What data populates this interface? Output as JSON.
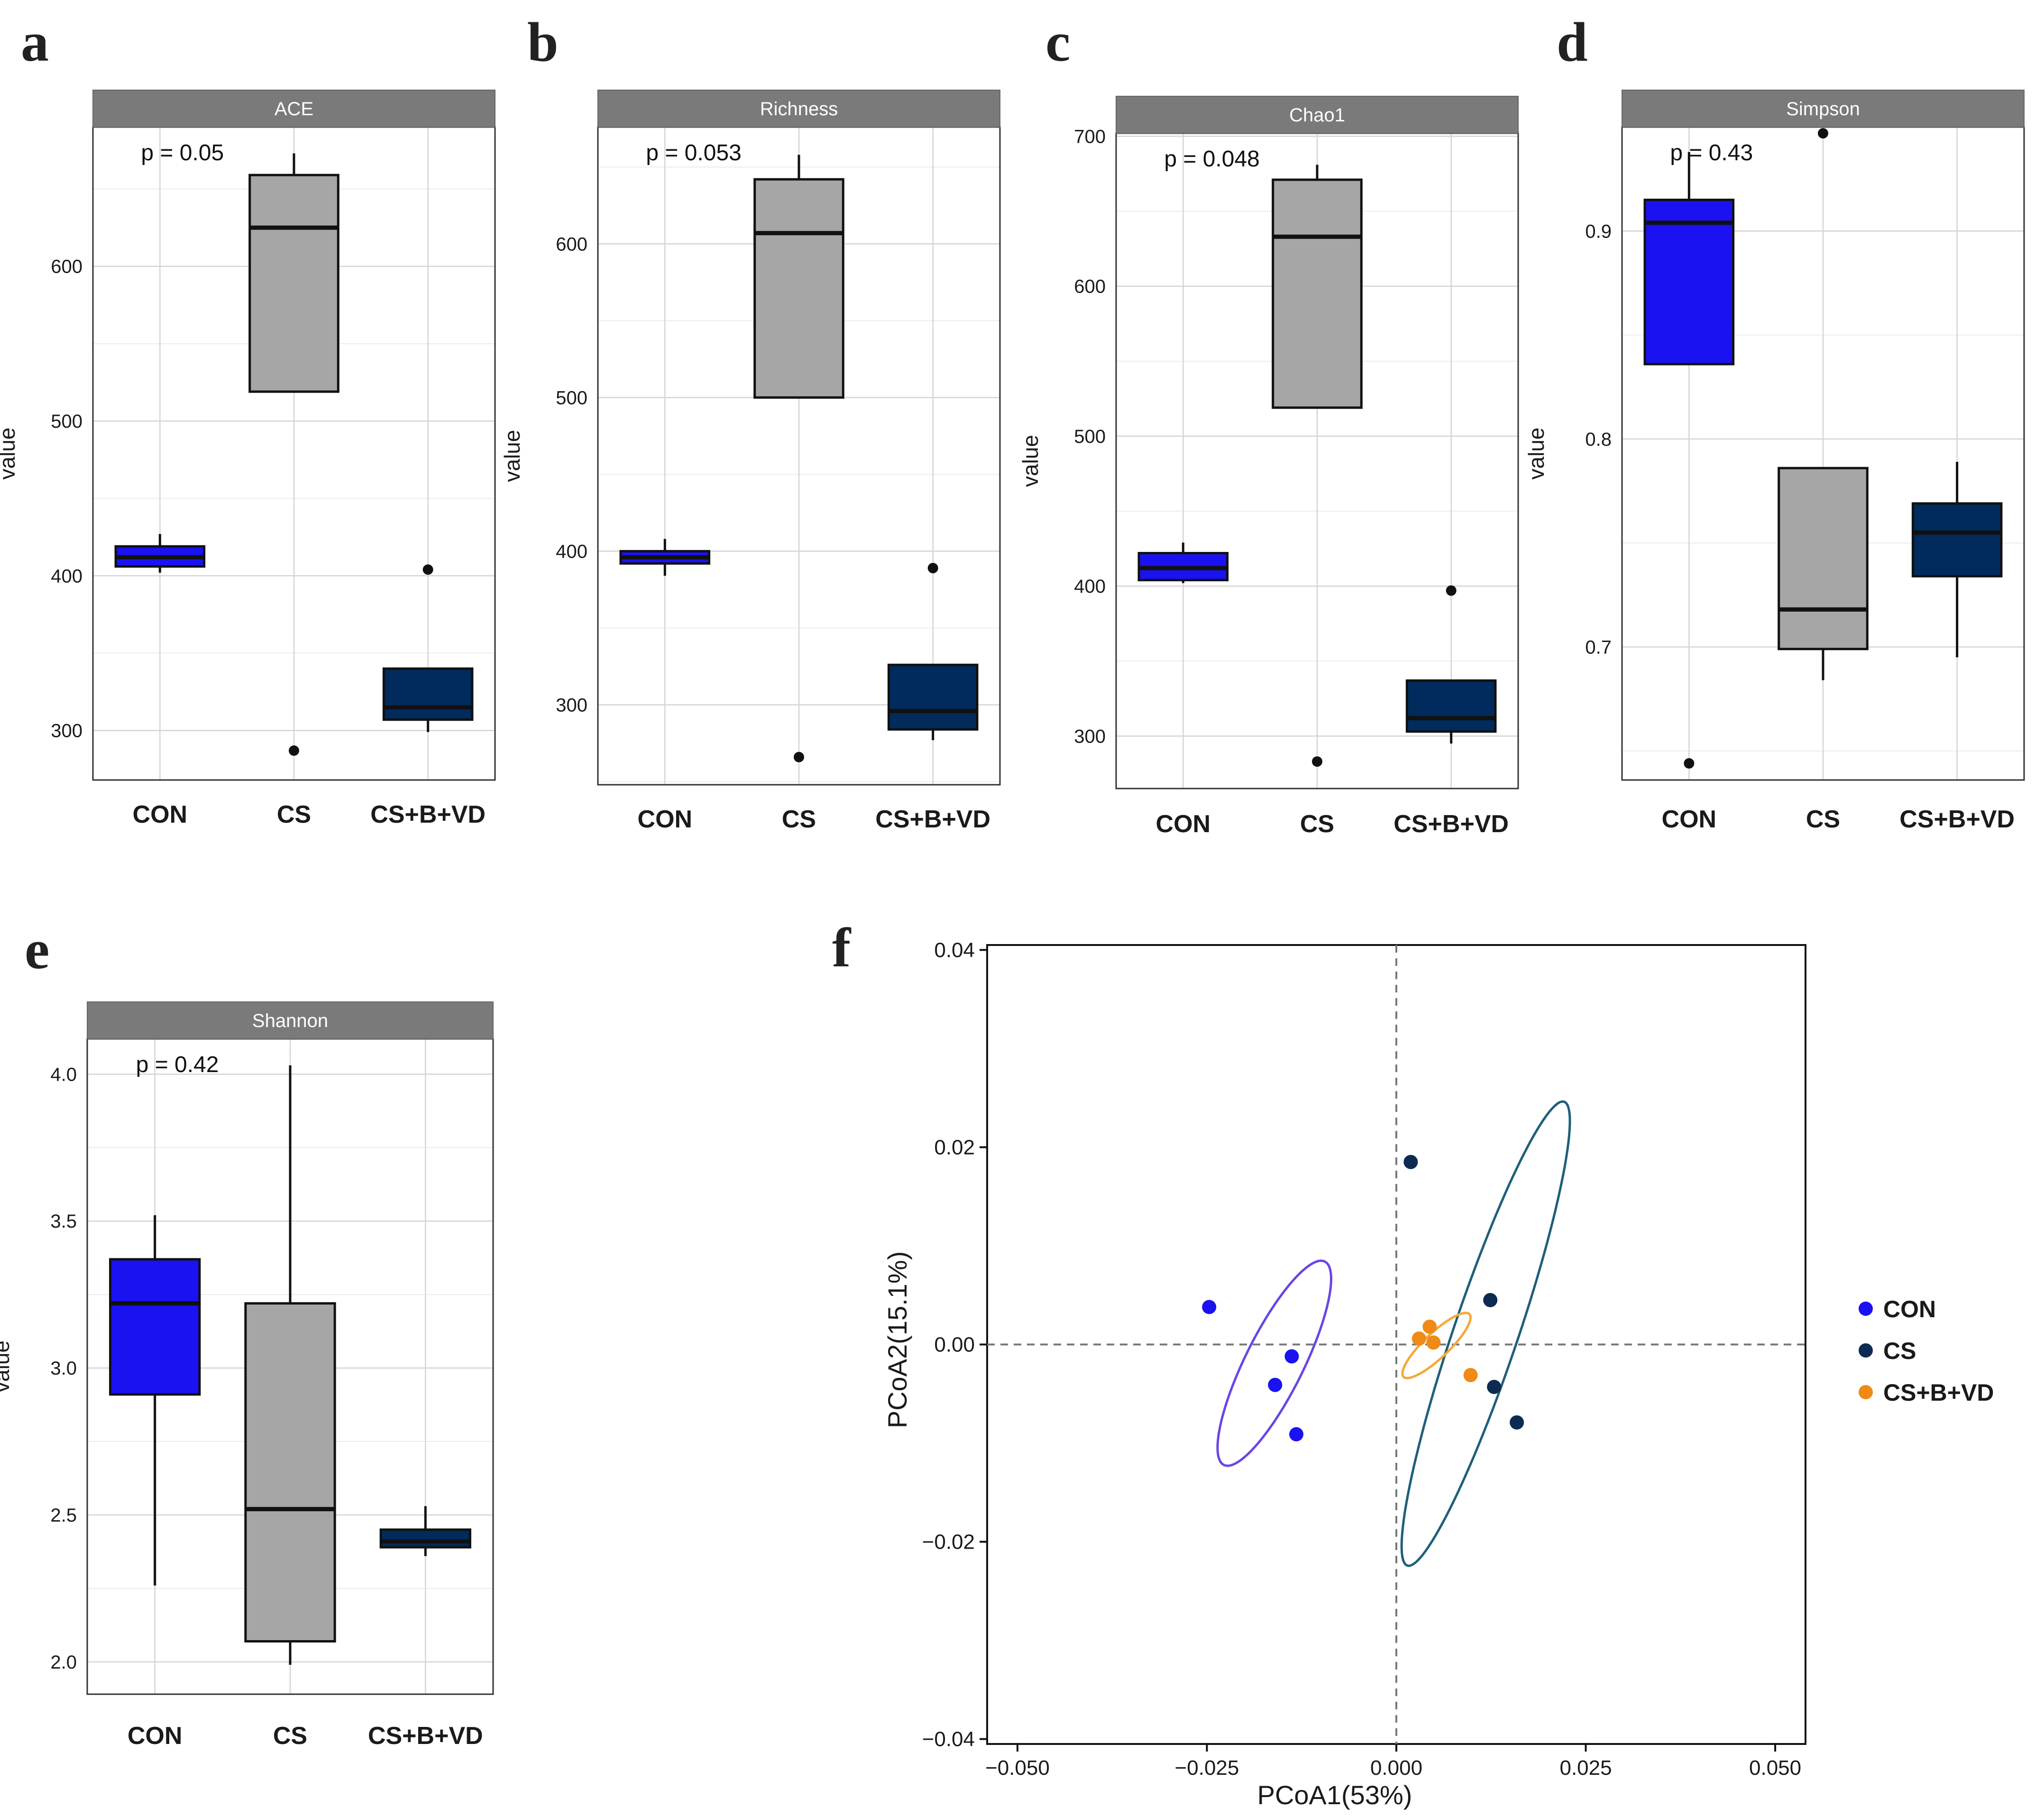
{
  "chart_data": [
    {
      "panel": "a",
      "type": "box",
      "title": "ACE",
      "ylabel": "value",
      "pvalue": "p = 0.05",
      "ylim": [
        268,
        690
      ],
      "yticks": [
        300,
        400,
        500,
        600
      ],
      "categories": [
        "CON",
        "CS",
        "CS+B+VD"
      ],
      "boxes": [
        {
          "group": "CON",
          "color": "#1a12f0",
          "whisker_low": 402,
          "q1": 406,
          "median": 412,
          "q3": 419,
          "whisker_high": 427,
          "outliers": []
        },
        {
          "group": "CS",
          "color": "#a6a6a6",
          "whisker_low": 519,
          "q1": 519,
          "median": 625,
          "q3": 659,
          "whisker_high": 673,
          "outliers": [
            287
          ]
        },
        {
          "group": "CS+B+VD",
          "color": "#002b5c",
          "whisker_low": 299,
          "q1": 307,
          "median": 315,
          "q3": 340,
          "whisker_high": 340,
          "outliers": [
            404
          ]
        }
      ]
    },
    {
      "panel": "b",
      "type": "box",
      "title": "Richness",
      "ylabel": "value",
      "pvalue": "p = 0.053",
      "ylim": [
        248,
        676
      ],
      "yticks": [
        300,
        400,
        500,
        600
      ],
      "categories": [
        "CON",
        "CS",
        "CS+B+VD"
      ],
      "boxes": [
        {
          "group": "CON",
          "color": "#1a12f0",
          "whisker_low": 384,
          "q1": 392,
          "median": 396,
          "q3": 400,
          "whisker_high": 408,
          "outliers": []
        },
        {
          "group": "CS",
          "color": "#a6a6a6",
          "whisker_low": 500,
          "q1": 500,
          "median": 607,
          "q3": 642,
          "whisker_high": 658,
          "outliers": [
            266
          ]
        },
        {
          "group": "CS+B+VD",
          "color": "#002b5c",
          "whisker_low": 277,
          "q1": 284,
          "median": 296,
          "q3": 326,
          "whisker_high": 326,
          "outliers": [
            389
          ]
        }
      ]
    },
    {
      "panel": "c",
      "type": "box",
      "title": "Chao1",
      "ylabel": "value",
      "pvalue": "p = 0.048",
      "ylim": [
        265,
        702
      ],
      "yticks": [
        300,
        400,
        500,
        600,
        700
      ],
      "categories": [
        "CON",
        "CS",
        "CS+B+VD"
      ],
      "boxes": [
        {
          "group": "CON",
          "color": "#1a12f0",
          "whisker_low": 402,
          "q1": 404,
          "median": 412,
          "q3": 422,
          "whisker_high": 429,
          "outliers": []
        },
        {
          "group": "CS",
          "color": "#a6a6a6",
          "whisker_low": 519,
          "q1": 519,
          "median": 633,
          "q3": 671,
          "whisker_high": 681,
          "outliers": [
            283
          ]
        },
        {
          "group": "CS+B+VD",
          "color": "#002b5c",
          "whisker_low": 295,
          "q1": 303,
          "median": 312,
          "q3": 337,
          "whisker_high": 337,
          "outliers": [
            397
          ]
        }
      ]
    },
    {
      "panel": "d",
      "type": "box",
      "title": "Simpson",
      "ylabel": "value",
      "pvalue": "p = 0.43",
      "ylim": [
        0.636,
        0.95
      ],
      "yticks": [
        0.7,
        0.8,
        0.9
      ],
      "yticks_labels": [
        "0.7",
        "0.8",
        "0.9"
      ],
      "categories": [
        "CON",
        "CS",
        "CS+B+VD"
      ],
      "boxes": [
        {
          "group": "CON",
          "color": "#1a12f0",
          "whisker_low": 0.836,
          "q1": 0.836,
          "median": 0.904,
          "q3": 0.915,
          "whisker_high": 0.938,
          "outliers": [
            0.644
          ]
        },
        {
          "group": "CS",
          "color": "#a6a6a6",
          "whisker_low": 0.684,
          "q1": 0.699,
          "median": 0.718,
          "q3": 0.786,
          "whisker_high": 0.786,
          "outliers": [
            0.947
          ]
        },
        {
          "group": "CS+B+VD",
          "color": "#002b5c",
          "whisker_low": 0.695,
          "q1": 0.734,
          "median": 0.755,
          "q3": 0.769,
          "whisker_high": 0.789,
          "outliers": []
        }
      ]
    },
    {
      "panel": "e",
      "type": "box",
      "title": "Shannon",
      "ylabel": "value",
      "pvalue": "p = 0.42",
      "ylim": [
        1.89,
        4.12
      ],
      "yticks": [
        2.0,
        2.5,
        3.0,
        3.5,
        4.0
      ],
      "yticks_labels": [
        "2.0",
        "2.5",
        "3.0",
        "3.5",
        "4.0"
      ],
      "categories": [
        "CON",
        "CS",
        "CS+B+VD"
      ],
      "boxes": [
        {
          "group": "CON",
          "color": "#1a12f0",
          "whisker_low": 2.26,
          "q1": 2.91,
          "median": 3.22,
          "q3": 3.37,
          "whisker_high": 3.52,
          "outliers": []
        },
        {
          "group": "CS",
          "color": "#a6a6a6",
          "whisker_low": 1.99,
          "q1": 2.07,
          "median": 2.52,
          "q3": 3.22,
          "whisker_high": 4.03,
          "outliers": []
        },
        {
          "group": "CS+B+VD",
          "color": "#002b5c",
          "whisker_low": 2.36,
          "q1": 2.39,
          "median": 2.41,
          "q3": 2.45,
          "whisker_high": 2.53,
          "outliers": []
        }
      ]
    },
    {
      "panel": "f",
      "type": "scatter",
      "title": "",
      "xlabel": "PCoA1(53%)",
      "ylabel": "PCoA2(15.1%)",
      "xlim": [
        -0.054,
        0.054
      ],
      "ylim": [
        -0.0405,
        0.0405
      ],
      "xticks": [
        -0.05,
        -0.025,
        0.0,
        0.025,
        0.05
      ],
      "xticks_labels": [
        "−0.050",
        "−0.025",
        "0.000",
        "0.025",
        "0.050"
      ],
      "yticks": [
        -0.04,
        -0.02,
        0.0,
        0.02,
        0.04
      ],
      "yticks_labels": [
        "−0.04",
        "−0.02",
        "0.00",
        "0.02",
        "0.04"
      ],
      "series": [
        {
          "name": "CON",
          "color": "#1a12f0",
          "ellipse_color": "#6a45e6",
          "points": [
            [
              -0.0247,
              0.0038
            ],
            [
              -0.0138,
              -0.0012
            ],
            [
              -0.016,
              -0.0041
            ],
            [
              -0.0132,
              -0.0091
            ]
          ],
          "ellipse": {
            "center": [
              -0.0161,
              -0.0019
            ],
            "semi_major": 0.0123,
            "semi_minor": 0.0036,
            "angle_deg": 56
          }
        },
        {
          "name": "CS",
          "color": "#0d2b52",
          "ellipse_color": "#1f5f7a",
          "points": [
            [
              0.0019,
              0.0185
            ],
            [
              0.0124,
              0.0045
            ],
            [
              0.0129,
              -0.0043
            ],
            [
              0.0159,
              -0.0079
            ]
          ],
          "ellipse": {
            "center": [
              0.0118,
              0.0011
            ],
            "semi_major": 0.0257,
            "semi_minor": 0.0041,
            "angle_deg": 66
          }
        },
        {
          "name": "CS+B+VD",
          "color": "#f08a17",
          "ellipse_color": "#f3a93a",
          "points": [
            [
              0.003,
              0.0006
            ],
            [
              0.0044,
              0.0018
            ],
            [
              0.0049,
              0.0002
            ],
            [
              0.0098,
              -0.0031
            ]
          ],
          "ellipse": {
            "center": [
              0.0053,
              -0.0001
            ],
            "semi_major": 0.0054,
            "semi_minor": 0.0014,
            "angle_deg": 35
          }
        }
      ],
      "reference_lines": {
        "x": 0,
        "y": 0,
        "style": "dashed"
      }
    }
  ]
}
